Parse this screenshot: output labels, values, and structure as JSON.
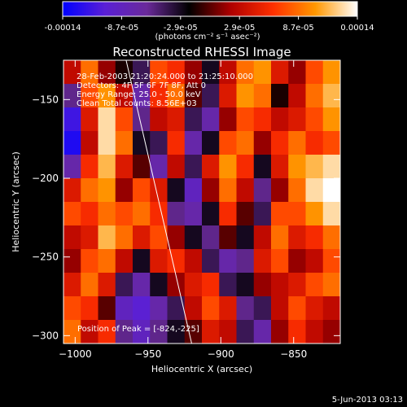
{
  "colorbar": {
    "tick_labels": [
      "-0.00014",
      "-8.7e-05",
      "-2.9e-05",
      "2.9e-05",
      "8.7e-05",
      "0.00014"
    ],
    "units_label": "(photons cm⁻² s⁻¹ asec⁻²)",
    "colormap": [
      "#0000ff",
      "#5a1fd6",
      "#6a2a9a",
      "#000000",
      "#b00000",
      "#ff3000",
      "#ff9800",
      "#ffffff"
    ]
  },
  "chart_data": {
    "type": "heatmap",
    "title": "Reconstructed RHESSI Image",
    "xlabel": "Heliocentric X (arcsec)",
    "ylabel": "Heliocentric Y (arcsec)",
    "xlim": [
      -1008,
      -818
    ],
    "ylim": [
      -305,
      -125
    ],
    "x_ticks": [
      -1000,
      -950,
      -900,
      -850
    ],
    "y_ticks": [
      -300,
      -250,
      -200,
      -150
    ],
    "x_tick_labels": [
      "−1000",
      "−950",
      "−900",
      "−850"
    ],
    "y_tick_labels": [
      "−300",
      "−250",
      "−200",
      "−150"
    ],
    "zlim": [
      -0.00014,
      0.00014
    ],
    "info_lines": [
      "28-Feb-2003 21:20:24.000 to 21:25:10.000",
      "Detectors: 4F 5F 6F 7F 8F, Att 0",
      "Energy Range: 25.0 - 50.0 keV",
      "Clean    Total counts: 8.56E+03"
    ],
    "peak_label": "Position of Peak = [-824,-225]",
    "peak": [
      -824,
      -225
    ],
    "limb_line": [
      [
        -965,
        -125
      ],
      [
        -920,
        -305
      ]
    ],
    "intensity_grid": [
      [
        0.2,
        0.6,
        0.1,
        -0.1,
        -0.3,
        0.5,
        0.4,
        0.1,
        -0.2,
        0.2,
        0.6,
        0.7,
        0.3,
        0.1,
        0.5,
        0.7
      ],
      [
        -0.4,
        0.5,
        0.7,
        0.2,
        -0.5,
        0.4,
        0.6,
        0.0,
        -0.3,
        0.3,
        0.7,
        0.6,
        -0.1,
        0.2,
        0.6,
        0.8
      ],
      [
        -0.8,
        0.3,
        0.9,
        0.5,
        -0.4,
        0.2,
        0.3,
        -0.3,
        -0.5,
        0.1,
        0.5,
        0.4,
        0.2,
        0.3,
        0.5,
        0.7
      ],
      [
        -0.9,
        0.2,
        0.9,
        0.6,
        -0.2,
        -0.3,
        0.4,
        -0.5,
        -0.2,
        0.5,
        0.6,
        0.1,
        0.4,
        0.6,
        0.4,
        0.5
      ],
      [
        -0.5,
        0.4,
        0.8,
        0.3,
        0.0,
        -0.5,
        0.2,
        -0.3,
        0.3,
        0.7,
        0.4,
        -0.2,
        0.3,
        0.7,
        0.8,
        0.9
      ],
      [
        0.3,
        0.6,
        0.7,
        0.1,
        0.5,
        0.3,
        -0.2,
        -0.6,
        0.1,
        0.6,
        0.2,
        -0.4,
        0.1,
        0.6,
        0.9,
        1.0
      ],
      [
        0.5,
        0.4,
        0.6,
        0.5,
        0.6,
        0.4,
        -0.4,
        -0.5,
        -0.2,
        0.4,
        0.0,
        -0.3,
        0.5,
        0.5,
        0.7,
        0.9
      ],
      [
        0.2,
        0.3,
        0.8,
        0.6,
        0.3,
        0.5,
        0.1,
        -0.2,
        -0.4,
        0.0,
        -0.2,
        0.2,
        0.6,
        0.3,
        0.4,
        0.6
      ],
      [
        0.1,
        0.5,
        0.6,
        0.2,
        -0.2,
        0.3,
        0.4,
        0.2,
        -0.3,
        -0.5,
        -0.4,
        0.3,
        0.5,
        0.1,
        0.2,
        0.5
      ],
      [
        0.3,
        0.6,
        0.3,
        -0.3,
        -0.5,
        -0.2,
        0.1,
        0.3,
        0.4,
        -0.3,
        -0.2,
        0.1,
        0.2,
        0.3,
        0.5,
        0.6
      ],
      [
        0.5,
        0.4,
        0.0,
        -0.6,
        -0.7,
        -0.5,
        -0.3,
        0.2,
        0.5,
        0.3,
        -0.4,
        -0.3,
        0.2,
        0.5,
        0.3,
        0.2
      ],
      [
        0.6,
        0.2,
        0.4,
        -0.4,
        -0.6,
        -0.4,
        -0.2,
        0.0,
        0.3,
        0.2,
        -0.3,
        -0.5,
        0.1,
        0.4,
        0.2,
        0.1
      ]
    ]
  },
  "footer": {
    "timestamp": "5-Jun-2013 03:13"
  }
}
